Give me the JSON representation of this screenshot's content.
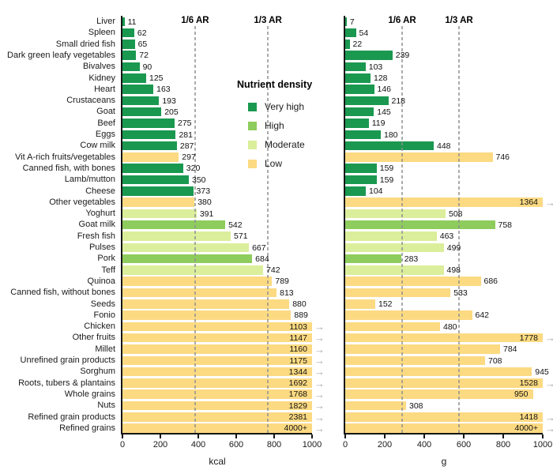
{
  "chart_data": {
    "type": "bar",
    "orientation": "horizontal",
    "overflow_arrow": "→",
    "legend": {
      "title": "Nutrient density",
      "items": [
        {
          "label": "Very high",
          "key": "very_high",
          "color": "#1a9850"
        },
        {
          "label": "High",
          "key": "high",
          "color": "#8ecd5d"
        },
        {
          "label": "Moderate",
          "key": "moderate",
          "color": "#dbee9b"
        },
        {
          "label": "Low",
          "key": "low",
          "color": "#fcda82"
        }
      ]
    },
    "panels": [
      {
        "name": "kcal",
        "xlabel": "kcal",
        "xlim": [
          0,
          1000
        ],
        "ticks": [
          "0",
          "200",
          "400",
          "600",
          "800",
          "1000"
        ],
        "reference_lines": [
          {
            "label": "1/6 AR",
            "value": 383
          },
          {
            "label": "1/3 AR",
            "value": 767
          }
        ]
      },
      {
        "name": "g",
        "xlabel": "g",
        "xlim": [
          0,
          1000
        ],
        "ticks": [
          "0",
          "200",
          "400",
          "600",
          "800",
          "1000"
        ],
        "reference_lines": [
          {
            "label": "1/6 AR",
            "value": 288
          },
          {
            "label": "1/3 AR",
            "value": 576
          }
        ]
      }
    ],
    "rows": [
      {
        "label": "Liver",
        "density": "very_high",
        "kcal": "11",
        "g": "7"
      },
      {
        "label": "Spleen",
        "density": "very_high",
        "kcal": "62",
        "g": "54"
      },
      {
        "label": "Small dried fish",
        "density": "very_high",
        "kcal": "65",
        "g": "22"
      },
      {
        "label": "Dark green leafy vegetables",
        "density": "very_high",
        "kcal": "72",
        "g": "239"
      },
      {
        "label": "Bivalves",
        "density": "very_high",
        "kcal": "90",
        "g": "103"
      },
      {
        "label": "Kidney",
        "density": "very_high",
        "kcal": "125",
        "g": "128"
      },
      {
        "label": "Heart",
        "density": "very_high",
        "kcal": "163",
        "g": "146"
      },
      {
        "label": "Crustaceans",
        "density": "very_high",
        "kcal": "193",
        "g": "218"
      },
      {
        "label": "Goat",
        "density": "very_high",
        "kcal": "205",
        "g": "145"
      },
      {
        "label": "Beef",
        "density": "very_high",
        "kcal": "275",
        "g": "119"
      },
      {
        "label": "Eggs",
        "density": "very_high",
        "kcal": "281",
        "g": "180"
      },
      {
        "label": "Cow milk",
        "density": "very_high",
        "kcal": "287",
        "g": "448"
      },
      {
        "label": "Vit A-rich fruits/vegetables",
        "density": "low",
        "kcal": "297",
        "g": "746"
      },
      {
        "label": "Canned fish, with bones",
        "density": "very_high",
        "kcal": "320",
        "g": "159"
      },
      {
        "label": "Lamb/mutton",
        "density": "very_high",
        "kcal": "350",
        "g": "159"
      },
      {
        "label": "Cheese",
        "density": "very_high",
        "kcal": "373",
        "g": "104"
      },
      {
        "label": "Other vegetables",
        "density": "low",
        "kcal": "380",
        "g": "1364"
      },
      {
        "label": "Yoghurt",
        "density": "moderate",
        "kcal": "391",
        "g": "508"
      },
      {
        "label": "Goat milk",
        "density": "high",
        "kcal": "542",
        "g": "758"
      },
      {
        "label": "Fresh fish",
        "density": "moderate",
        "kcal": "571",
        "g": "463"
      },
      {
        "label": "Pulses",
        "density": "moderate",
        "kcal": "667",
        "g": "499"
      },
      {
        "label": "Pork",
        "density": "high",
        "kcal": "684",
        "g": "283"
      },
      {
        "label": "Teff",
        "density": "moderate",
        "kcal": "742",
        "g": "498"
      },
      {
        "label": "Quinoa",
        "density": "low",
        "kcal": "789",
        "g": "686"
      },
      {
        "label": "Canned fish, without bones",
        "density": "low",
        "kcal": "813",
        "g": "533"
      },
      {
        "label": "Seeds",
        "density": "low",
        "kcal": "880",
        "g": "152"
      },
      {
        "label": "Fonio",
        "density": "low",
        "kcal": "889",
        "g": "642"
      },
      {
        "label": "Chicken",
        "density": "low",
        "kcal": "1103",
        "g": "480"
      },
      {
        "label": "Other fruits",
        "density": "low",
        "kcal": "1147",
        "g": "1778"
      },
      {
        "label": "Millet",
        "density": "low",
        "kcal": "1160",
        "g": "784"
      },
      {
        "label": "Unrefined grain products",
        "density": "low",
        "kcal": "1175",
        "g": "708"
      },
      {
        "label": "Sorghum",
        "density": "low",
        "kcal": "1344",
        "g": "945"
      },
      {
        "label": "Roots, tubers & plantains",
        "density": "low",
        "kcal": "1692",
        "g": "1528"
      },
      {
        "label": "Whole grains",
        "density": "low",
        "kcal": "1768",
        "g": "950"
      },
      {
        "label": "Nuts",
        "density": "low",
        "kcal": "1829",
        "g": "308"
      },
      {
        "label": "Refined grain products",
        "density": "low",
        "kcal": "2381",
        "g": "1418"
      },
      {
        "label": "Refined grains",
        "density": "low",
        "kcal": "4000+",
        "g": "4000+"
      }
    ]
  }
}
